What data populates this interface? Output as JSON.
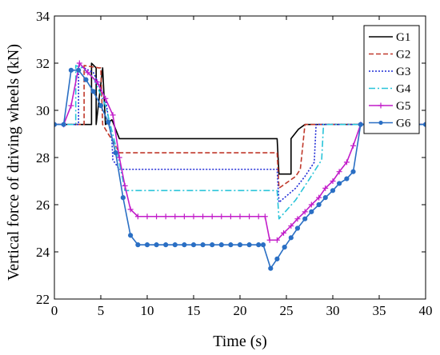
{
  "chart_data": {
    "type": "line",
    "title": "",
    "xlabel": "Time (s)",
    "ylabel": "Vertical force of driving wheels (kN)",
    "xlim": [
      0,
      40
    ],
    "ylim": [
      22,
      34
    ],
    "xticks": [
      "0",
      "5",
      "10",
      "15",
      "20",
      "25",
      "30",
      "35",
      "40"
    ],
    "yticks": [
      "22",
      "24",
      "26",
      "28",
      "30",
      "32",
      "34"
    ],
    "grid": false,
    "legend_position": "top-right",
    "series": [
      {
        "name": "G1",
        "color": "#000000",
        "dash": "solid",
        "marker": "none",
        "x": [
          0,
          4.0,
          4.0,
          4.5,
          4.5,
          5.2,
          5.5,
          6.2,
          7.0,
          24.0,
          24.2,
          25.5,
          25.5,
          26.3,
          27.0,
          40
        ],
        "y": [
          29.4,
          29.4,
          32.0,
          31.8,
          29.4,
          31.8,
          29.4,
          29.6,
          28.8,
          28.8,
          27.3,
          27.3,
          28.8,
          29.2,
          29.4,
          29.4
        ]
      },
      {
        "name": "G2",
        "color": "#c0392b",
        "dash": "dashed",
        "marker": "none",
        "x": [
          0,
          3.2,
          3.2,
          4.8,
          5.0,
          5.2,
          5.8,
          6.3,
          7.0,
          24.0,
          24.2,
          26.0,
          26.5,
          27.0,
          40
        ],
        "y": [
          29.4,
          29.4,
          31.9,
          31.8,
          31.8,
          29.4,
          29.0,
          28.7,
          28.2,
          28.2,
          26.7,
          27.2,
          27.5,
          29.4,
          29.4
        ]
      },
      {
        "name": "G3",
        "color": "#1f2bd6",
        "dash": "dotted",
        "marker": "none",
        "x": [
          0,
          2.6,
          2.6,
          3.2,
          4.2,
          5.5,
          6.2,
          6.3,
          7.0,
          24.0,
          24.2,
          26.0,
          27.0,
          28.0,
          28.2,
          40
        ],
        "y": [
          29.4,
          29.4,
          31.9,
          31.8,
          31.6,
          30.5,
          28.7,
          27.9,
          27.5,
          27.5,
          26.1,
          26.7,
          27.2,
          27.8,
          29.4,
          29.4
        ]
      },
      {
        "name": "G4",
        "color": "#29c4d9",
        "dash": "dashdot",
        "marker": "none",
        "x": [
          0,
          2.3,
          2.3,
          3.0,
          4.2,
          5.5,
          6.6,
          7.2,
          7.6,
          24.0,
          24.2,
          26.0,
          27.5,
          28.8,
          29.0,
          40
        ],
        "y": [
          29.4,
          29.4,
          31.9,
          31.8,
          31.4,
          30.2,
          28.5,
          27.4,
          26.6,
          26.6,
          25.4,
          26.2,
          27.1,
          27.9,
          29.4,
          29.4
        ]
      },
      {
        "name": "G5",
        "color": "#c21cc9",
        "dash": "solid",
        "marker": "plus",
        "x": [
          0,
          1.0,
          1.8,
          2.7,
          3.6,
          4.6,
          5.5,
          6.3,
          7.0,
          7.6,
          8.2,
          9.0,
          10.0,
          11.0,
          12.0,
          13.0,
          14.0,
          15.0,
          16.0,
          17.0,
          18.0,
          19.0,
          20.0,
          21.0,
          22.0,
          22.7,
          23.2,
          24.0,
          24.7,
          25.5,
          26.2,
          27.0,
          27.7,
          28.5,
          29.2,
          30.0,
          30.7,
          31.5,
          32.2,
          33.0,
          34.0,
          35.0,
          36.0,
          37.0,
          38.0,
          39.0,
          40.0
        ],
        "y": [
          29.4,
          29.4,
          30.2,
          32.0,
          31.6,
          31.2,
          30.5,
          29.8,
          28.0,
          26.8,
          25.8,
          25.5,
          25.5,
          25.5,
          25.5,
          25.5,
          25.5,
          25.5,
          25.5,
          25.5,
          25.5,
          25.5,
          25.5,
          25.5,
          25.5,
          25.5,
          24.5,
          24.5,
          24.8,
          25.1,
          25.4,
          25.7,
          26.0,
          26.3,
          26.7,
          27.0,
          27.4,
          27.8,
          28.5,
          29.4,
          29.4,
          29.4,
          29.4,
          29.4,
          29.4,
          29.4,
          29.4
        ]
      },
      {
        "name": "G6",
        "color": "#2a6fc4",
        "dash": "solid",
        "marker": "circle",
        "x": [
          0,
          1.0,
          1.8,
          2.6,
          3.4,
          4.2,
          5.0,
          5.8,
          6.6,
          7.4,
          8.2,
          9.0,
          10.0,
          11.0,
          12.0,
          13.0,
          14.0,
          15.0,
          16.0,
          17.0,
          18.0,
          19.0,
          20.0,
          21.0,
          22.0,
          22.5,
          23.3,
          24.0,
          24.8,
          25.5,
          26.2,
          27.0,
          27.7,
          28.5,
          29.2,
          30.0,
          30.7,
          31.5,
          32.2,
          33.0,
          34.0,
          35.0,
          36.0,
          37.0,
          38.0,
          39.0,
          40.0
        ],
        "y": [
          29.4,
          29.4,
          31.7,
          31.7,
          31.3,
          30.8,
          30.2,
          29.5,
          28.2,
          26.3,
          24.7,
          24.3,
          24.3,
          24.3,
          24.3,
          24.3,
          24.3,
          24.3,
          24.3,
          24.3,
          24.3,
          24.3,
          24.3,
          24.3,
          24.3,
          24.3,
          23.3,
          23.7,
          24.2,
          24.6,
          25.0,
          25.4,
          25.7,
          26.0,
          26.3,
          26.6,
          26.9,
          27.1,
          27.4,
          29.4,
          29.4,
          29.4,
          29.4,
          29.4,
          29.4,
          29.4,
          29.4
        ]
      }
    ]
  }
}
